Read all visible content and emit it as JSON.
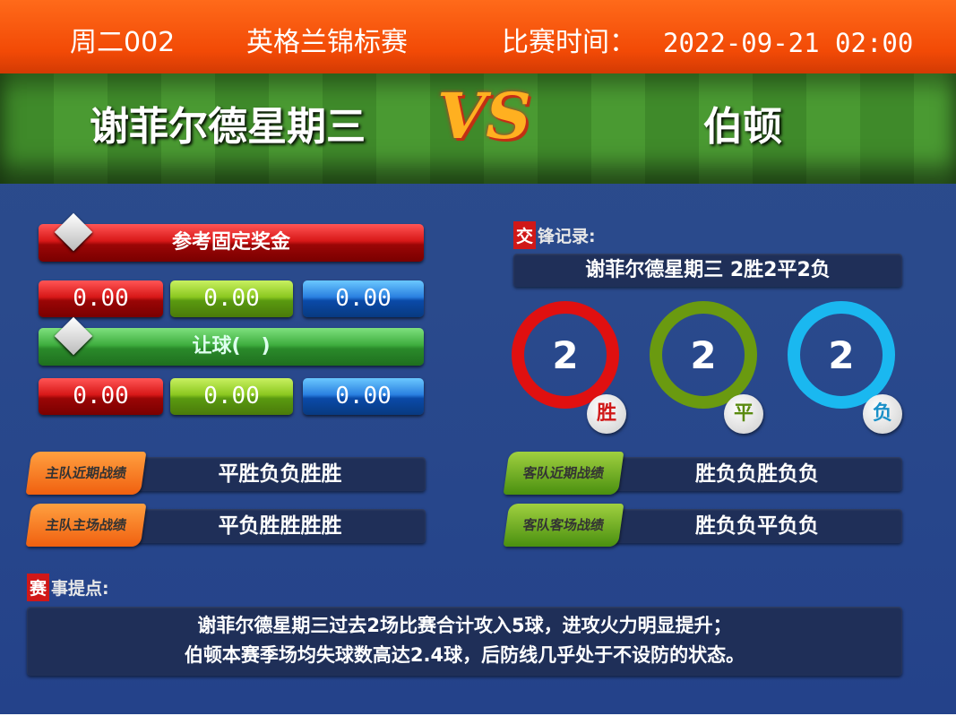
{
  "header": {
    "match_no": "周二002",
    "league": "英格兰锦标赛",
    "time_label": "比赛时间：",
    "time": "2022-09-21 02:00"
  },
  "teams": {
    "home": "谢菲尔德星期三",
    "away": "伯顿",
    "vs": "VS"
  },
  "odds": {
    "fixed_title": "参考固定奖金",
    "fixed": [
      "0.00",
      "0.00",
      "0.00"
    ],
    "handicap_title": "让球(   )",
    "handicap": [
      "0.00",
      "0.00",
      "0.00"
    ]
  },
  "h2h": {
    "label_mark": "交",
    "label_rest": "锋记录:",
    "summary": "谢菲尔德星期三  2胜2平2负",
    "win": "2",
    "draw": "2",
    "loss": "2",
    "win_label": "胜",
    "draw_label": "平",
    "loss_label": "负",
    "colors": {
      "win": "#e01010",
      "draw": "#6a9a10",
      "loss": "#1ab8f0"
    }
  },
  "form": {
    "home_recent_label": "主队近期战绩",
    "home_recent": "平胜负负胜胜",
    "home_home_label": "主队主场战绩",
    "home_home": "平负胜胜胜胜",
    "away_recent_label": "客队近期战绩",
    "away_recent": "胜负负胜负负",
    "away_away_label": "客队客场战绩",
    "away_away": "胜负负平负负"
  },
  "tips": {
    "label_mark": "赛",
    "label_rest": "事提点:",
    "line1": "谢菲尔德星期三过去2场比赛合计攻入5球，进攻火力明显提升；",
    "line2": "伯顿本赛季场均失球数高达2.4球，后防线几乎处于不设防的状态。"
  }
}
